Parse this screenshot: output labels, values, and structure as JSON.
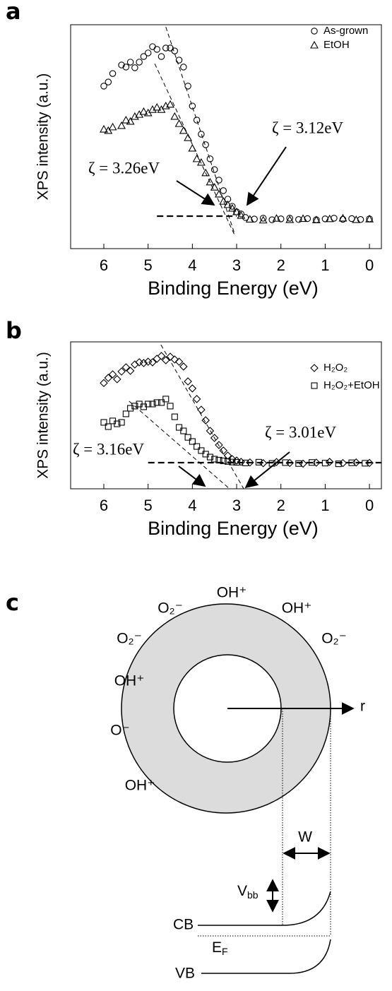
{
  "chart_data": [
    {
      "type": "scatter",
      "panel_label": "a",
      "y_label": "XPS intensity (a.u.)",
      "x_label": "Binding Energy (eV)",
      "xlim": [
        6.75,
        -0.27
      ],
      "xticks": [
        6,
        5,
        4,
        3,
        2,
        1,
        0
      ],
      "ylim": [
        0,
        100
      ],
      "series": [
        {
          "name": "As-grown",
          "marker": "circle",
          "color": "#000000",
          "x": [
            6.0,
            5.9,
            5.8,
            5.6,
            5.5,
            5.4,
            5.3,
            5.2,
            5.1,
            5.0,
            4.9,
            4.8,
            4.7,
            4.6,
            4.5,
            4.4,
            4.3,
            4.2,
            4.1,
            4.0,
            3.9,
            3.8,
            3.7,
            3.6,
            3.5,
            3.4,
            3.3,
            3.2,
            3.1,
            3.0,
            2.9,
            2.8,
            2.6,
            2.4,
            2.2,
            2.0,
            1.8,
            1.6,
            1.4,
            1.2,
            1.0,
            0.8,
            0.6,
            0.4,
            0.2,
            0.0
          ],
          "values": [
            72.6,
            74.4,
            78.2,
            82.0,
            81.1,
            83.3,
            80.8,
            83.3,
            85.8,
            87.4,
            90.2,
            89.0,
            85.8,
            89.6,
            89.6,
            88.3,
            84.2,
            81.1,
            72.6,
            63.7,
            57.4,
            51.1,
            46.4,
            40.1,
            35.3,
            30.6,
            25.9,
            22.1,
            18.9,
            16.4,
            15.5,
            13.9,
            13.2,
            13.6,
            12.9,
            13.3,
            13.6,
            13.0,
            13.4,
            12.9,
            13.3,
            13.6,
            13.1,
            13.4,
            13.0,
            13.3
          ]
        },
        {
          "name": "EtOH",
          "marker": "triangle",
          "color": "#000000",
          "x": [
            6.0,
            5.9,
            5.8,
            5.6,
            5.5,
            5.4,
            5.3,
            5.2,
            5.1,
            5.0,
            4.9,
            4.8,
            4.7,
            4.6,
            4.5,
            4.4,
            4.3,
            4.2,
            4.1,
            4.0,
            3.9,
            3.8,
            3.7,
            3.6,
            3.5,
            3.4,
            3.3,
            3.2,
            3.1,
            3.0,
            2.9,
            2.7,
            2.4,
            2.1,
            1.8,
            1.5,
            1.2,
            0.9,
            0.6,
            0.3,
            0.0
          ],
          "values": [
            53.3,
            52.7,
            54.3,
            54.9,
            57.4,
            56.8,
            59.0,
            59.9,
            61.2,
            60.6,
            62.1,
            63.1,
            62.1,
            63.7,
            64.4,
            59.0,
            55.8,
            52.7,
            49.5,
            44.8,
            40.1,
            38.5,
            33.8,
            29.7,
            27.4,
            24.3,
            21.1,
            19.6,
            18.0,
            16.4,
            14.8,
            13.1,
            12.7,
            13.5,
            12.9,
            13.4,
            12.8,
            13.3,
            13.6,
            12.9,
            13.2
          ]
        }
      ],
      "fit_lines": [
        {
          "x": [
            4.6,
            3.05
          ],
          "y": [
            99,
            6.9
          ]
        },
        {
          "x": [
            4.85,
            3.03
          ],
          "y": [
            82.6,
            5.4
          ]
        }
      ],
      "baseline": {
        "x": [
          4.8,
          3.0
        ],
        "y": [
          14.5,
          14.5
        ]
      },
      "annotations": [
        "ζ = 3.26eV",
        "ζ = 3.12eV"
      ]
    },
    {
      "type": "scatter",
      "panel_label": "b",
      "y_label": "XPS intensity (a.u.)",
      "x_label": "Binding Energy (eV)",
      "xlim": [
        6.75,
        -0.27
      ],
      "xticks": [
        6,
        5,
        4,
        3,
        2,
        1,
        0
      ],
      "ylim": [
        0,
        100
      ],
      "series": [
        {
          "name": "H₂O₂",
          "marker": "diamond",
          "color": "#000000",
          "x": [
            6.0,
            5.9,
            5.8,
            5.7,
            5.6,
            5.5,
            5.4,
            5.3,
            5.2,
            5.1,
            5.0,
            4.9,
            4.8,
            4.7,
            4.6,
            4.5,
            4.4,
            4.3,
            4.2,
            4.1,
            4.0,
            3.9,
            3.8,
            3.7,
            3.6,
            3.5,
            3.4,
            3.3,
            3.2,
            3.1,
            3.0,
            2.9,
            2.7,
            2.4,
            2.1,
            1.8,
            1.5,
            1.2,
            0.9,
            0.6,
            0.3,
            0.0
          ],
          "values": [
            72.0,
            75.5,
            77.9,
            74.6,
            79.8,
            82.7,
            80.3,
            84.6,
            86.1,
            85.6,
            86.5,
            86.1,
            88.5,
            90.4,
            87.5,
            89.9,
            88.0,
            86.5,
            83.2,
            73.1,
            68.3,
            61.1,
            53.8,
            46.6,
            39.4,
            34.6,
            29.8,
            26.0,
            22.6,
            20.2,
            19.2,
            18.3,
            17.9,
            17.4,
            18.2,
            17.6,
            17.1,
            17.8,
            18.3,
            17.5,
            17.9,
            17.6
          ]
        },
        {
          "name": "H₂O₂+EtOH",
          "marker": "square",
          "color": "#000000",
          "x": [
            6.0,
            5.9,
            5.8,
            5.7,
            5.6,
            5.5,
            5.4,
            5.3,
            5.2,
            5.1,
            5.0,
            4.9,
            4.8,
            4.7,
            4.6,
            4.5,
            4.4,
            4.3,
            4.2,
            4.1,
            4.0,
            3.9,
            3.8,
            3.7,
            3.6,
            3.5,
            3.4,
            3.3,
            3.2,
            3.1,
            3.0,
            2.8,
            2.5,
            2.2,
            1.9,
            1.6,
            1.3,
            1.0,
            0.7,
            0.4,
            0.1
          ],
          "values": [
            45.2,
            42.3,
            46.2,
            44.2,
            45.2,
            51.0,
            54.8,
            56.3,
            57.7,
            55.8,
            57.7,
            57.7,
            58.7,
            58.7,
            61.1,
            56.3,
            49.0,
            41.8,
            39.4,
            35.0,
            32.2,
            28.8,
            26.0,
            23.6,
            21.6,
            20.2,
            19.5,
            19.0,
            18.6,
            18.2,
            18.0,
            17.6,
            18.1,
            17.3,
            17.8,
            17.2,
            17.9,
            17.5,
            17.0,
            17.7,
            17.4
          ]
        }
      ],
      "fit_lines": [
        {
          "x": [
            4.71,
            2.84
          ],
          "y": [
            98,
            0
          ]
        },
        {
          "x": [
            5.43,
            3.16
          ],
          "y": [
            59.6,
            0
          ]
        }
      ],
      "baseline": {
        "x": [
          5.0,
          -0.27
        ],
        "y": [
          17.8,
          17.8
        ]
      },
      "annotations": [
        "ζ = 3.16eV",
        "ζ = 3.01eV"
      ]
    }
  ],
  "diagram": {
    "panel_label": "c",
    "ions": [
      "OH⁺",
      "O₂⁻",
      "OH⁺",
      "O₂⁻",
      "O₂⁻",
      "OH⁺",
      "O⁻",
      "OH⁺"
    ],
    "axis_label": "r",
    "width_label": "W",
    "bending": {
      "main": "V",
      "sub": "bb"
    },
    "cb": "CB",
    "fermi": {
      "main": "E",
      "sub": "F"
    },
    "vb": "VB"
  }
}
